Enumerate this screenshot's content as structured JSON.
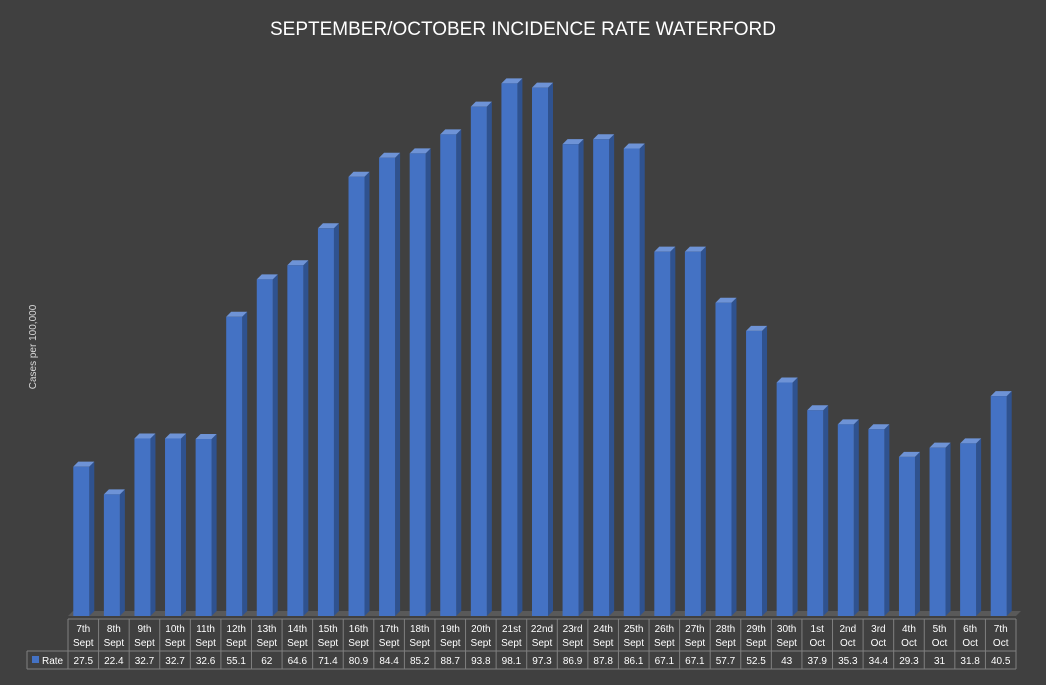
{
  "chart_data": {
    "type": "bar",
    "title": "SEPTEMBER/OCTOBER INCIDENCE RATE WATERFORD",
    "ylabel": "Cases per 100,000",
    "xlabel": "",
    "ylim": [
      0,
      100
    ],
    "legend_position": "data-table",
    "grid": false,
    "categories": [
      [
        "7th",
        "Sept"
      ],
      [
        "8th",
        "Sept"
      ],
      [
        "9th",
        "Sept"
      ],
      [
        "10th",
        "Sept"
      ],
      [
        "11th",
        "Sept"
      ],
      [
        "12th",
        "Sept"
      ],
      [
        "13th",
        "Sept"
      ],
      [
        "14th",
        "Sept"
      ],
      [
        "15th",
        "Sept"
      ],
      [
        "16th",
        "Sept"
      ],
      [
        "17th",
        "Sept"
      ],
      [
        "18th",
        "Sept"
      ],
      [
        "19th",
        "Sept"
      ],
      [
        "20th",
        "Sept"
      ],
      [
        "21st",
        "Sept"
      ],
      [
        "22nd",
        "Sept"
      ],
      [
        "23rd",
        "Sept"
      ],
      [
        "24th",
        "Sept"
      ],
      [
        "25th",
        "Sept"
      ],
      [
        "26th",
        "Sept"
      ],
      [
        "27th",
        "Sept"
      ],
      [
        "28th",
        "Sept"
      ],
      [
        "29th",
        "Sept"
      ],
      [
        "30th",
        "Sept"
      ],
      [
        "1st",
        "Oct"
      ],
      [
        "2nd",
        "Oct"
      ],
      [
        "3rd",
        "Oct"
      ],
      [
        "4th",
        "Oct"
      ],
      [
        "5th",
        "Oct"
      ],
      [
        "6th",
        "Oct"
      ],
      [
        "7th",
        "Oct"
      ]
    ],
    "series": [
      {
        "name": "Rate",
        "color": "#4472C4",
        "values": [
          27.5,
          22.4,
          32.7,
          32.7,
          32.6,
          55.1,
          62,
          64.6,
          71.4,
          80.9,
          84.4,
          85.2,
          88.7,
          93.8,
          98.1,
          97.3,
          86.9,
          87.8,
          86.1,
          67.1,
          67.1,
          57.7,
          52.5,
          43,
          37.9,
          35.3,
          34.4,
          29.3,
          31,
          31.8,
          40.5
        ]
      }
    ],
    "background_color": "#404040",
    "text_color": "#FFFFFF"
  }
}
